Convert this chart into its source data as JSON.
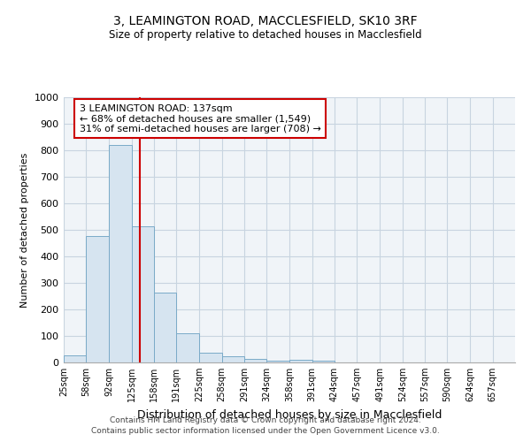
{
  "title1": "3, LEAMINGTON ROAD, MACCLESFIELD, SK10 3RF",
  "title2": "Size of property relative to detached houses in Macclesfield",
  "xlabel": "Distribution of detached houses by size in Macclesfield",
  "ylabel": "Number of detached properties",
  "footnote1": "Contains HM Land Registry data © Crown copyright and database right 2024.",
  "footnote2": "Contains public sector information licensed under the Open Government Licence v3.0.",
  "annotation_line1": "3 LEAMINGTON ROAD: 137sqm",
  "annotation_line2": "← 68% of detached houses are smaller (1,549)",
  "annotation_line3": "31% of semi-detached houses are larger (708) →",
  "bar_edges": [
    25,
    58,
    92,
    125,
    158,
    191,
    225,
    258,
    291,
    324,
    358,
    391,
    424,
    457,
    491,
    524,
    557,
    590,
    624,
    657,
    690
  ],
  "bar_values": [
    28,
    478,
    820,
    515,
    265,
    110,
    38,
    22,
    12,
    8,
    10,
    8,
    0,
    0,
    0,
    0,
    0,
    0,
    0,
    0
  ],
  "bar_color": "#d6e4f0",
  "bar_edge_color": "#7aaac8",
  "red_line_x": 137,
  "ylim": [
    0,
    1000
  ],
  "yticks": [
    0,
    100,
    200,
    300,
    400,
    500,
    600,
    700,
    800,
    900,
    1000
  ],
  "annotation_box_color": "#ffffff",
  "annotation_box_edge": "#cc0000",
  "red_line_color": "#cc0000",
  "grid_color": "#c8d4e0",
  "bg_color": "#ffffff",
  "plot_bg_color": "#f0f4f8"
}
